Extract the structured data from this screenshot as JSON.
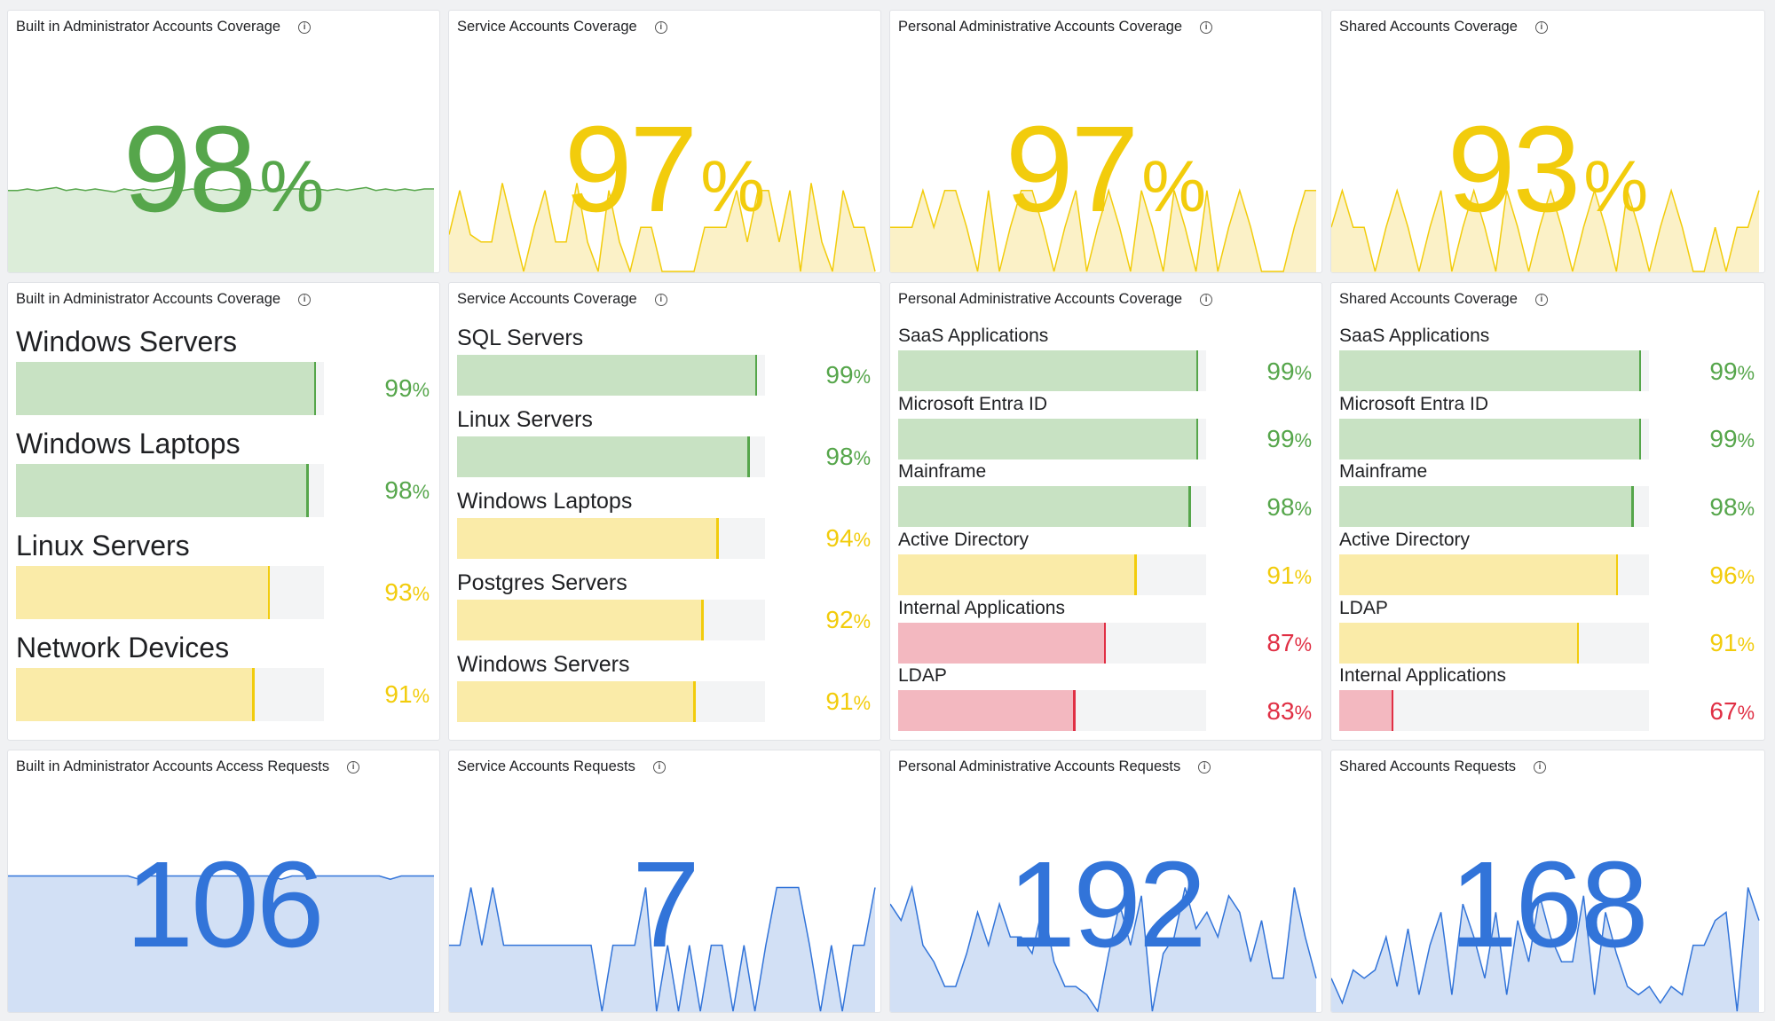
{
  "colors": {
    "green": "#56a64b",
    "yellow": "#f2cc0c",
    "red": "#e02f44",
    "blue": "#3274d9",
    "green_fill": "#c8e2c3",
    "yellow_fill": "#faeba8",
    "red_fill": "#f3b8c0",
    "blue_fill": "#d2e0f5",
    "green_area": "#dcedd9",
    "yellow_area": "#fbf1c7"
  },
  "coverage_stats": [
    {
      "title": "Built in Administrator Accounts Coverage",
      "value": "98",
      "unit": "%",
      "status": "green",
      "spark": [
        0.55,
        0.55,
        0.56,
        0.55,
        0.56,
        0.57,
        0.55,
        0.56,
        0.55,
        0.56,
        0.55,
        0.54,
        0.56,
        0.55,
        0.56,
        0.55,
        0.56,
        0.57,
        0.55,
        0.56,
        0.55,
        0.56,
        0.55,
        0.56,
        0.55,
        0.56,
        0.55,
        0.56,
        0.55,
        0.56,
        0.56,
        0.55,
        0.56,
        0.55,
        0.56,
        0.55,
        0.56,
        0.57,
        0.55,
        0.56,
        0.55,
        0.56,
        0.55,
        0.56,
        0.56
      ]
    },
    {
      "title": "Service Accounts Coverage",
      "value": "97",
      "unit": "%",
      "status": "yellow",
      "spark": [
        0.25,
        0.55,
        0.25,
        0.2,
        0.2,
        0.6,
        0.3,
        0.0,
        0.3,
        0.55,
        0.2,
        0.2,
        0.6,
        0.2,
        0.0,
        0.55,
        0.2,
        0.0,
        0.3,
        0.3,
        0.0,
        0.0,
        0.0,
        0.0,
        0.3,
        0.3,
        0.3,
        0.55,
        0.2,
        0.55,
        0.55,
        0.2,
        0.55,
        0.0,
        0.6,
        0.2,
        0.0,
        0.55,
        0.3,
        0.3,
        0.0
      ]
    },
    {
      "title": "Personal Administrative Accounts Coverage",
      "value": "97",
      "unit": "%",
      "status": "yellow",
      "spark": [
        0.3,
        0.3,
        0.3,
        0.55,
        0.3,
        0.55,
        0.55,
        0.3,
        0.0,
        0.55,
        0.0,
        0.3,
        0.55,
        0.55,
        0.3,
        0.0,
        0.3,
        0.55,
        0.0,
        0.3,
        0.55,
        0.3,
        0.0,
        0.55,
        0.3,
        0.0,
        0.55,
        0.3,
        0.0,
        0.55,
        0.0,
        0.3,
        0.55,
        0.3,
        0.0,
        0.0,
        0.0,
        0.3,
        0.55,
        0.55
      ]
    },
    {
      "title": "Shared Accounts Coverage",
      "value": "93",
      "unit": "%",
      "status": "yellow",
      "spark": [
        0.3,
        0.55,
        0.3,
        0.3,
        0.0,
        0.3,
        0.55,
        0.3,
        0.0,
        0.3,
        0.55,
        0.0,
        0.3,
        0.55,
        0.3,
        0.0,
        0.55,
        0.3,
        0.0,
        0.3,
        0.55,
        0.3,
        0.0,
        0.3,
        0.55,
        0.3,
        0.0,
        0.55,
        0.3,
        0.0,
        0.3,
        0.55,
        0.3,
        0.0,
        0.0,
        0.3,
        0.0,
        0.3,
        0.3,
        0.55
      ]
    }
  ],
  "coverage_gauges": [
    {
      "title": "Built in Administrator Accounts Coverage",
      "items": [
        {
          "label": "Windows Servers",
          "value": 99,
          "status": "green"
        },
        {
          "label": "Windows Laptops",
          "value": 98,
          "status": "green"
        },
        {
          "label": "Linux Servers",
          "value": 93,
          "status": "yellow"
        },
        {
          "label": "Network Devices",
          "value": 91,
          "status": "yellow"
        }
      ]
    },
    {
      "title": "Service Accounts Coverage",
      "items": [
        {
          "label": "SQL Servers",
          "value": 99,
          "status": "green"
        },
        {
          "label": "Linux Servers",
          "value": 98,
          "status": "green"
        },
        {
          "label": "Windows Laptops",
          "value": 94,
          "status": "yellow"
        },
        {
          "label": "Postgres Servers",
          "value": 92,
          "status": "yellow"
        },
        {
          "label": "Windows Servers",
          "value": 91,
          "status": "yellow"
        }
      ]
    },
    {
      "title": "Personal Administrative Accounts Coverage",
      "items": [
        {
          "label": "SaaS Applications",
          "value": 99,
          "status": "green"
        },
        {
          "label": "Microsoft Entra ID",
          "value": 99,
          "status": "green"
        },
        {
          "label": "Mainframe",
          "value": 98,
          "status": "green"
        },
        {
          "label": "Active Directory",
          "value": 91,
          "status": "yellow"
        },
        {
          "label": "Internal Applications",
          "value": 87,
          "status": "red"
        },
        {
          "label": "LDAP",
          "value": 83,
          "status": "red"
        }
      ]
    },
    {
      "title": "Shared Accounts Coverage",
      "items": [
        {
          "label": "SaaS Applications",
          "value": 99,
          "status": "green"
        },
        {
          "label": "Microsoft Entra ID",
          "value": 99,
          "status": "green"
        },
        {
          "label": "Mainframe",
          "value": 98,
          "status": "green"
        },
        {
          "label": "Active Directory",
          "value": 96,
          "status": "yellow"
        },
        {
          "label": "LDAP",
          "value": 91,
          "status": "yellow"
        },
        {
          "label": "Internal Applications",
          "value": 67,
          "status": "red"
        }
      ]
    }
  ],
  "request_stats": [
    {
      "title": "Built in Administrator Accounts Access Requests",
      "value": "106",
      "spark": [
        0.82,
        0.82,
        0.82,
        0.82,
        0.82,
        0.82,
        0.82,
        0.82,
        0.82,
        0.82,
        0.82,
        0.82,
        0.8,
        0.82,
        0.82,
        0.82,
        0.82,
        0.82,
        0.82,
        0.82,
        0.82,
        0.82,
        0.82,
        0.82,
        0.82,
        0.8,
        0.82,
        0.82,
        0.82,
        0.82,
        0.82,
        0.82,
        0.82,
        0.82,
        0.82,
        0.8,
        0.82,
        0.82,
        0.82,
        0.82
      ]
    },
    {
      "title": "Service Accounts Requests",
      "value": "7",
      "spark": [
        0.4,
        0.4,
        0.75,
        0.4,
        0.75,
        0.4,
        0.4,
        0.4,
        0.4,
        0.4,
        0.4,
        0.4,
        0.4,
        0.4,
        0.0,
        0.4,
        0.4,
        0.4,
        0.75,
        0.0,
        0.4,
        0.0,
        0.4,
        0.0,
        0.4,
        0.4,
        0.0,
        0.4,
        0.0,
        0.4,
        0.75,
        0.75,
        0.75,
        0.4,
        0.0,
        0.4,
        0.0,
        0.4,
        0.4,
        0.75
      ]
    },
    {
      "title": "Personal Administrative Accounts Requests",
      "value": "192",
      "spark": [
        0.65,
        0.55,
        0.75,
        0.4,
        0.3,
        0.15,
        0.15,
        0.35,
        0.6,
        0.4,
        0.65,
        0.45,
        0.45,
        0.35,
        0.65,
        0.3,
        0.15,
        0.15,
        0.1,
        0.0,
        0.35,
        0.65,
        0.4,
        0.7,
        0.0,
        0.35,
        0.45,
        0.75,
        0.5,
        0.6,
        0.45,
        0.7,
        0.6,
        0.3,
        0.55,
        0.2,
        0.2,
        0.75,
        0.45,
        0.2
      ]
    },
    {
      "title": "Shared Accounts Requests",
      "value": "168",
      "spark": [
        0.2,
        0.05,
        0.25,
        0.2,
        0.25,
        0.45,
        0.15,
        0.5,
        0.1,
        0.4,
        0.6,
        0.1,
        0.65,
        0.45,
        0.2,
        0.6,
        0.1,
        0.55,
        0.3,
        0.7,
        0.45,
        0.3,
        0.3,
        0.7,
        0.1,
        0.6,
        0.35,
        0.15,
        0.1,
        0.15,
        0.05,
        0.15,
        0.1,
        0.4,
        0.4,
        0.55,
        0.6,
        0.0,
        0.75,
        0.55
      ]
    }
  ]
}
